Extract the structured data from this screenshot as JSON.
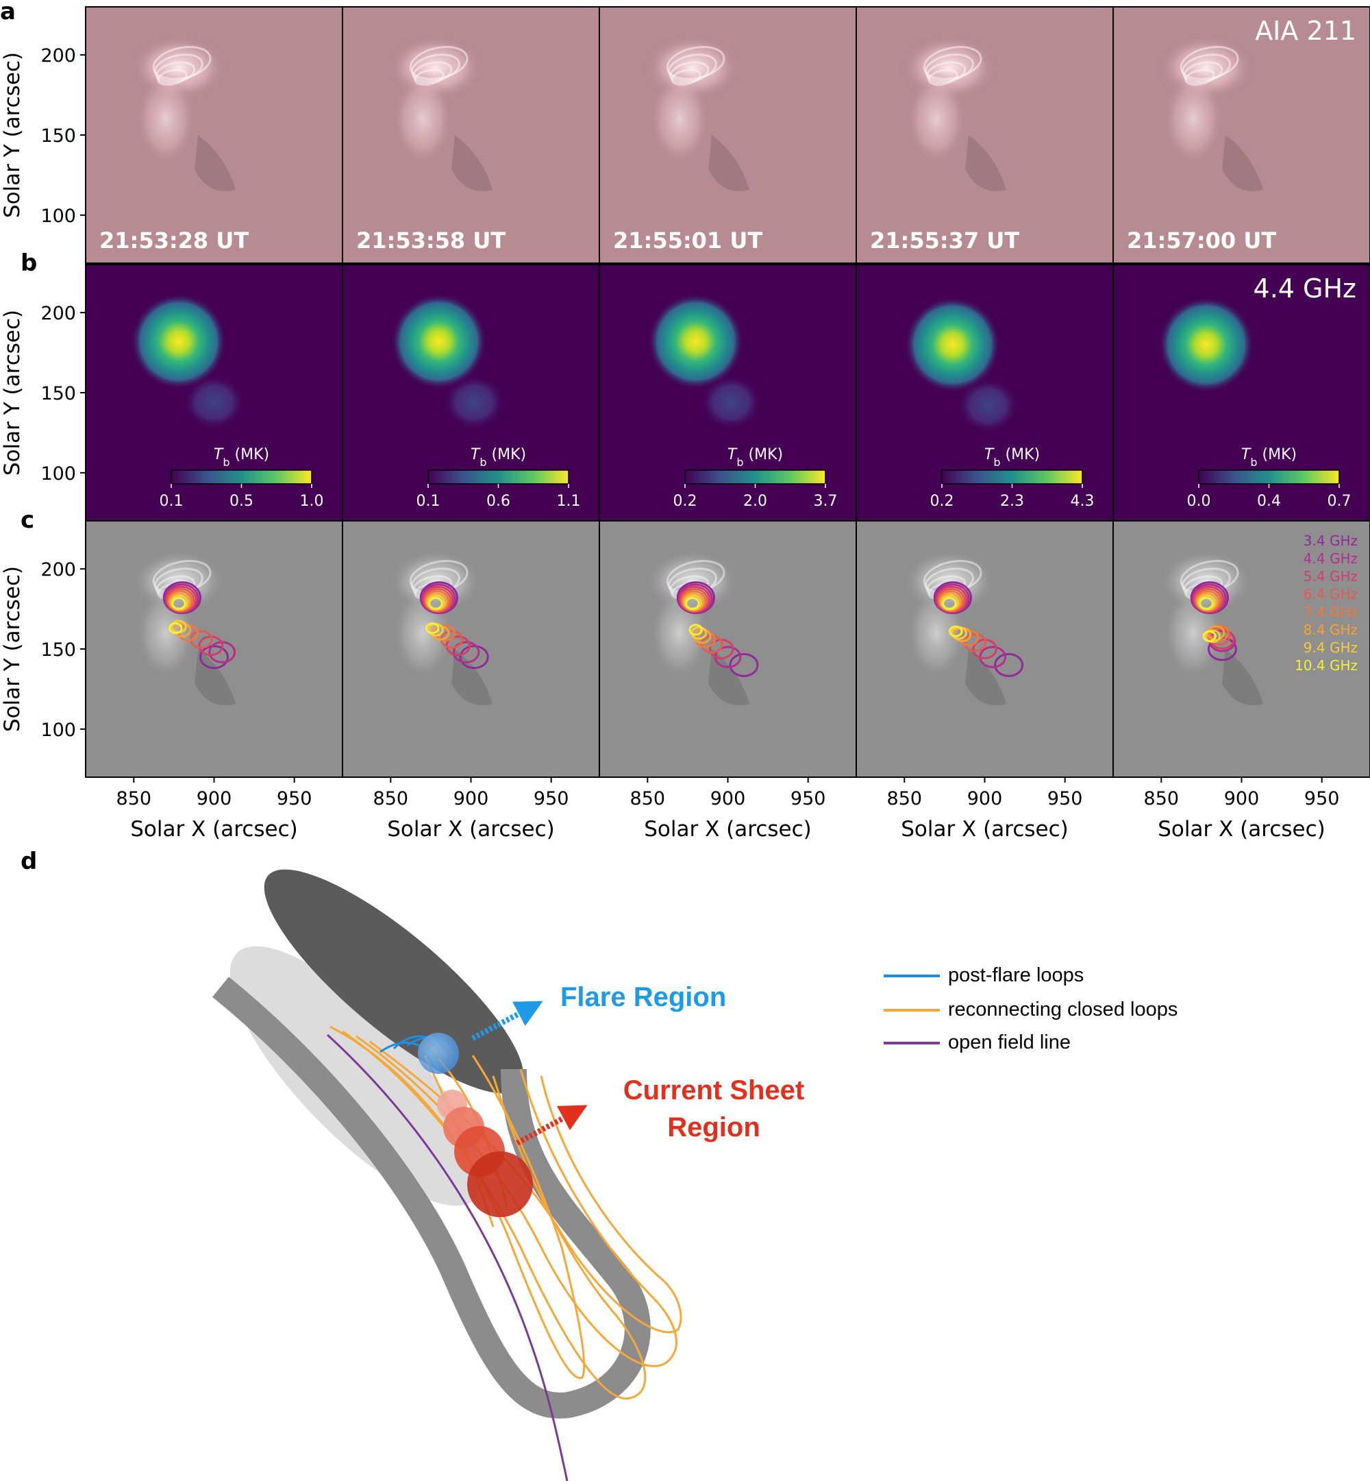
{
  "panel_letters": {
    "a": "a",
    "b": "b",
    "c": "c",
    "d": "d"
  },
  "y_axis_label": "Solar Y (arcsec)",
  "x_axis_label": "Solar X (arcsec)",
  "y_ticks": [
    "200",
    "150",
    "100"
  ],
  "x_ticks": [
    "850",
    "900",
    "950"
  ],
  "times": [
    "21:53:28 UT",
    "21:53:58 UT",
    "21:55:01 UT",
    "21:55:37 UT",
    "21:57:00 UT"
  ],
  "aia_label": "AIA 211",
  "radio_label": "4.4 GHz",
  "colorbar_title": "T_b (MK)",
  "colorbar_ticks": [
    [
      "0.1",
      "0.5",
      "1.0"
    ],
    [
      "0.1",
      "0.6",
      "1.1"
    ],
    [
      "0.2",
      "2.0",
      "3.7"
    ],
    [
      "0.2",
      "2.3",
      "4.3"
    ],
    [
      "0.0",
      "0.4",
      "0.7"
    ]
  ],
  "frequencies": [
    {
      "label": "3.4 GHz",
      "color": "#8e2a9a"
    },
    {
      "label": "4.4 GHz",
      "color": "#b12f8a"
    },
    {
      "label": "5.4 GHz",
      "color": "#cf3f6a"
    },
    {
      "label": "6.4 GHz",
      "color": "#e45a4f"
    },
    {
      "label": "7.4 GHz",
      "color": "#f0783c"
    },
    {
      "label": "8.4 GHz",
      "color": "#f6a23a"
    },
    {
      "label": "9.4 GHz",
      "color": "#f7cb3a"
    },
    {
      "label": "10.4 GHz",
      "color": "#f2f03a"
    }
  ],
  "schematic": {
    "flare_region": "Flare Region",
    "current_sheet_line1": "Current Sheet",
    "current_sheet_line2": "Region",
    "legend": [
      {
        "label": "post-flare loops",
        "color": "#1d8fe0"
      },
      {
        "label": "reconnecting closed loops",
        "color": "#f5a83a"
      },
      {
        "label": "open field line",
        "color": "#7a3a96"
      }
    ],
    "colors": {
      "flare": "#1e9ae6",
      "current_sheet": "#e2301d"
    }
  },
  "chart_data": {
    "type": "image-grid",
    "xlim": [
      820,
      980
    ],
    "ylim": [
      70,
      230
    ],
    "panels_a": {
      "instrument": "AIA 211",
      "times": [
        "21:53:28 UT",
        "21:53:58 UT",
        "21:55:01 UT",
        "21:55:37 UT",
        "21:57:00 UT"
      ]
    },
    "panels_b": {
      "frequency": "4.4 GHz",
      "colorbar_ranges_MK": [
        [
          0.1,
          1.0
        ],
        [
          0.1,
          1.1
        ],
        [
          0.2,
          3.7
        ],
        [
          0.2,
          4.3
        ],
        [
          0.0,
          0.7
        ]
      ]
    },
    "panels_c": {
      "frequencies_GHz": [
        3.4,
        4.4,
        5.4,
        6.4,
        7.4,
        8.4,
        9.4,
        10.4
      ]
    }
  }
}
